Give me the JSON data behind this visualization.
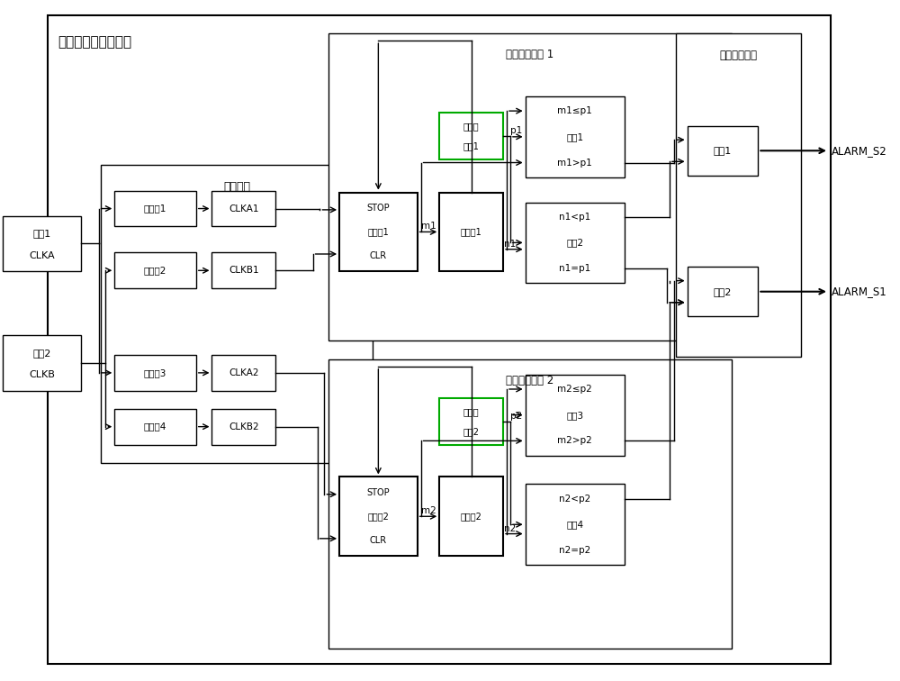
{
  "bg": "#ffffff",
  "lw": 1.0,
  "lw_thick": 1.5,
  "gray": "#e8e8e8",
  "white": "#ffffff",
  "green_edge": "#00aa00",
  "black": "#000000",
  "blocks": {
    "main_outer": [
      0.52,
      0.18,
      8.85,
      7.22
    ],
    "freq_div": [
      1.12,
      2.42,
      3.08,
      3.32
    ],
    "freq_judge1": [
      3.7,
      3.78,
      4.55,
      3.42
    ],
    "freq_judge2": [
      3.7,
      0.35,
      4.55,
      3.22
    ],
    "alarm": [
      7.62,
      3.6,
      1.42,
      3.6
    ]
  },
  "labels": {
    "main": "晋振时钟互检测模块",
    "freq_div": "分频模块",
    "freq_judge1": "频率判别模块 1",
    "freq_judge2": "频率判别模块 2",
    "alarm": "报警判别模块",
    "xtal1_l1": "晋振1",
    "xtal1_l2": "CLKA",
    "xtal2_l1": "晋振2",
    "xtal2_l2": "CLKB",
    "fen1": "分频器1",
    "fen2": "分频器2",
    "fen3": "分频器3",
    "fen4": "分频器4",
    "clka1": "CLKA1",
    "clkb1": "CLKB1",
    "clka2": "CLKA2",
    "clkb2": "CLKB2",
    "cnt1_l1": "STOP",
    "cnt1_l2": "计数器1",
    "cnt1_l3": "CLR",
    "cnt2_l1": "STOP",
    "cnt2_l2": "计数器2",
    "cnt2_l3": "CLR",
    "ff1": "触发器1",
    "ff2": "触发器2",
    "pre1_l1": "预置寄",
    "pre1_l2": "存器1",
    "pre2_l1": "预置寄",
    "pre2_l2": "存器2",
    "cmp1_l1": "m1≤p1",
    "cmp1_l2": "比较1",
    "cmp1_l3": "m1>p1",
    "cmp2_l1": "n1<p1",
    "cmp2_l2": "比较2",
    "cmp2_l3": "n1=p1",
    "cmp3_l1": "m2≤p2",
    "cmp3_l2": "比较3",
    "cmp3_l3": "m2>p2",
    "cmp4_l1": "n2<p2",
    "cmp4_l2": "比较4",
    "cmp4_l3": "n2=p2",
    "gate1": "与门1",
    "gate2": "与门2",
    "alarm_s2": "ALARM_S2",
    "alarm_s1": "ALARM_S1",
    "p1": "p1",
    "n1": "n1",
    "m1": "m1",
    "p2": "p2",
    "n2": "n2",
    "m2": "m2"
  }
}
